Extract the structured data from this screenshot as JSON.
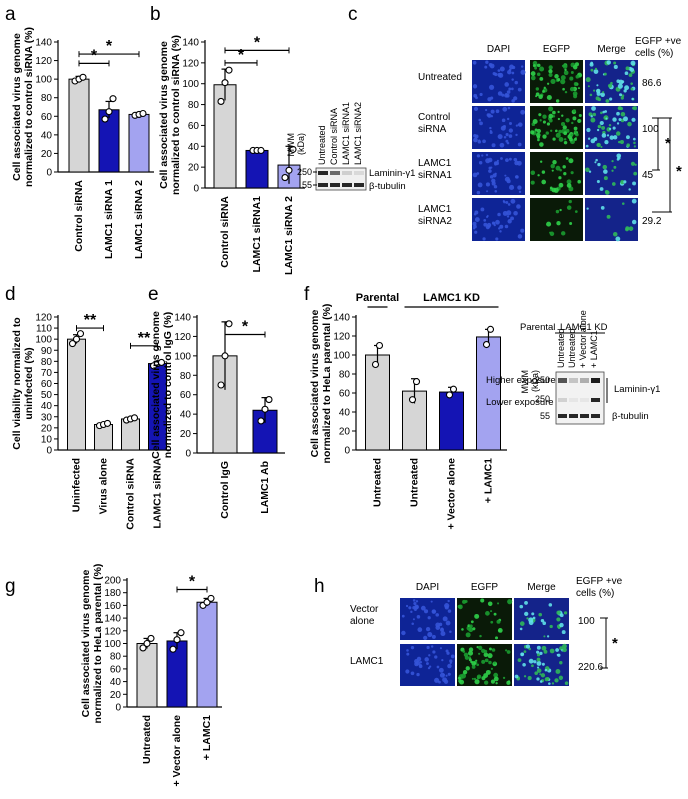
{
  "colors": {
    "gray": "#d6d6d6",
    "dark_blue": "#1414b4",
    "mid_blue": "#2f2fc8",
    "light_purple": "#a3a3f0",
    "micro_bg": "#102a8a",
    "egfp": "#1fb83a",
    "merge": "#2f5fc8"
  },
  "panel_letters": [
    "a",
    "b",
    "c",
    "d",
    "e",
    "f",
    "g",
    "h"
  ],
  "charts": [
    {
      "panel": "a",
      "type": "bar",
      "ylabel": [
        "Cell associated virus genome",
        "normalized to control siRNA (%)"
      ],
      "yticks": [
        0,
        20,
        40,
        60,
        80,
        100,
        120,
        140
      ],
      "ylim": [
        0,
        140
      ],
      "categories": [
        "Control siRNA",
        "LAMC1 siRNA 1",
        "LAMC1 siRNA 2"
      ],
      "values": [
        100,
        67,
        62
      ],
      "errors": [
        3,
        9,
        2
      ],
      "points": [
        [
          98,
          100,
          102
        ],
        [
          57,
          65,
          79
        ],
        [
          61,
          62,
          63
        ]
      ],
      "colors": [
        "#d6d6d6",
        "#1414b4",
        "#a3a3f0"
      ],
      "sig": [
        {
          "from": 0,
          "to": 1,
          "y": 117,
          "label": "*"
        },
        {
          "from": 0,
          "to": 2,
          "y": 127,
          "label": "*"
        }
      ]
    },
    {
      "panel": "b",
      "type": "bar",
      "ylabel": [
        "Cell associated virus genome",
        "normalized to control siRNA (%)"
      ],
      "yticks": [
        0,
        20,
        40,
        60,
        80,
        100,
        120,
        140
      ],
      "ylim": [
        0,
        140
      ],
      "categories": [
        "Control siRNA",
        "LAMC1 siRNA1",
        "LAMC1 siRNA 2"
      ],
      "values": [
        99,
        36,
        22
      ],
      "errors": [
        15,
        1,
        18
      ],
      "points": [
        [
          83,
          101,
          113
        ],
        [
          36,
          36,
          36
        ],
        [
          10,
          17,
          37
        ]
      ],
      "colors": [
        "#d6d6d6",
        "#1414b4",
        "#a3a3f0"
      ],
      "sig": [
        {
          "from": 0,
          "to": 1,
          "y": 120,
          "label": "*"
        },
        {
          "from": 0,
          "to": 2,
          "y": 132,
          "label": "*"
        }
      ]
    },
    {
      "panel": "d",
      "type": "bar",
      "ylabel": [
        "Cell viability normalized to",
        "uninfected (%)"
      ],
      "yticks": [
        0,
        10,
        20,
        30,
        40,
        50,
        60,
        70,
        80,
        90,
        100,
        110,
        120
      ],
      "ylim": [
        0,
        120
      ],
      "categories": [
        "Uninfected",
        "Virus alone",
        "Control siRNA",
        "LAMC1 siRNA"
      ],
      "values": [
        100,
        23,
        28,
        78
      ],
      "errors": [
        4,
        1,
        1,
        2
      ],
      "points": [
        [
          96,
          100,
          105
        ],
        [
          22,
          23,
          24
        ],
        [
          27,
          28,
          29
        ],
        [
          76,
          78,
          79
        ]
      ],
      "colors": [
        "#d6d6d6",
        "#d6d6d6",
        "#d6d6d6",
        "#1414b4"
      ],
      "sig": [
        {
          "from": 0,
          "to": 1,
          "y": 110,
          "label": "**"
        },
        {
          "from": 2,
          "to": 3,
          "y": 94,
          "label": "**"
        }
      ]
    },
    {
      "panel": "e",
      "type": "bar",
      "ylabel": [
        "Cell associated virus genome",
        "normalized to control IgG (%)"
      ],
      "yticks": [
        0,
        20,
        40,
        60,
        80,
        100,
        120,
        140
      ],
      "ylim": [
        0,
        140
      ],
      "categories": [
        "Control IgG",
        "LAMC1 Ab"
      ],
      "values": [
        100,
        44
      ],
      "errors": [
        35,
        13
      ],
      "points": [
        [
          70,
          100,
          133
        ],
        [
          33,
          45,
          55
        ]
      ],
      "colors": [
        "#d6d6d6",
        "#1414b4"
      ],
      "sig": [
        {
          "from": 0,
          "to": 1,
          "y": 122,
          "label": "*"
        }
      ]
    },
    {
      "panel": "f",
      "type": "bar",
      "ylabel": [
        "Cell associated virus genome",
        "normalized to HeLa parental (%)"
      ],
      "yticks": [
        0,
        20,
        40,
        60,
        80,
        100,
        120,
        140
      ],
      "ylim": [
        0,
        140
      ],
      "categories": [
        "Untreated",
        "Untreated",
        "+ Vector alone",
        "+ LAMC1"
      ],
      "values": [
        100,
        62,
        61,
        119
      ],
      "errors": [
        10,
        13,
        5,
        8
      ],
      "points": [
        [
          90,
          110
        ],
        [
          53,
          72
        ],
        [
          58,
          64
        ],
        [
          111,
          127
        ]
      ],
      "colors": [
        "#d6d6d6",
        "#d6d6d6",
        "#1414b4",
        "#a3a3f0"
      ],
      "sig": [],
      "groups": [
        {
          "label": "Parental",
          "from": 0,
          "to": 0
        },
        {
          "label": "LAMC1 KD",
          "from": 1,
          "to": 3
        }
      ]
    },
    {
      "panel": "g",
      "type": "bar",
      "ylabel": [
        "Cell associated virus genome",
        "normalized to HeLa parental (%)"
      ],
      "yticks": [
        0,
        20,
        40,
        60,
        80,
        100,
        120,
        140,
        160,
        180,
        200
      ],
      "ylim": [
        0,
        200
      ],
      "categories": [
        "Untreated",
        "+ Vector alone",
        "+ LAMC1"
      ],
      "values": [
        100,
        104,
        165
      ],
      "errors": [
        8,
        13,
        6
      ],
      "points": [
        [
          93,
          100,
          108
        ],
        [
          91,
          106,
          117
        ],
        [
          160,
          165,
          171
        ]
      ],
      "colors": [
        "#d6d6d6",
        "#1414b4",
        "#a3a3f0"
      ],
      "sig": [
        {
          "from": 1,
          "to": 2,
          "y": 185,
          "label": "*"
        }
      ]
    }
  ],
  "blot_b": {
    "mwm_label": [
      "MWM",
      "(kDa)"
    ],
    "lanes": [
      "Untreated",
      "Control siRNA",
      "LAMC1 siRNA1",
      "LAMC1 siRNA2"
    ],
    "markers": [
      "250",
      "55"
    ],
    "bands": [
      "Laminin-γ1",
      "β-tubulin"
    ]
  },
  "blot_f": {
    "groups": [
      "Parental",
      "LAMC1 KD"
    ],
    "mwm_label": [
      "MWM",
      "(kDa)"
    ],
    "lanes": [
      "Untreated",
      "Untreated",
      "+ Vector alone",
      "+ LAMC1"
    ],
    "exposures": [
      "Higher exposure",
      "Lower exposure"
    ],
    "markers": [
      "250",
      "250",
      "55"
    ],
    "bands": [
      "Laminin-γ1",
      "β-tubulin"
    ]
  },
  "micro_c": {
    "columns": [
      "DAPI",
      "EGFP",
      "Merge"
    ],
    "pct_header": [
      "EGFP +ve",
      "cells (%)"
    ],
    "rows": [
      {
        "label": [
          "Untreated"
        ],
        "value": "86.6"
      },
      {
        "label": [
          "Control",
          "siRNA"
        ],
        "value": "100"
      },
      {
        "label": [
          "LAMC1",
          "siRNA1"
        ],
        "value": "45"
      },
      {
        "label": [
          "LAMC1",
          "siRNA2"
        ],
        "value": "29.2"
      }
    ],
    "green_intensity": [
      0.85,
      0.95,
      0.45,
      0.18
    ],
    "sig": [
      "*",
      "*"
    ]
  },
  "micro_h": {
    "columns": [
      "DAPI",
      "EGFP",
      "Merge"
    ],
    "pct_header": [
      "EGFP +ve",
      "cells (%)"
    ],
    "rows": [
      {
        "label": [
          "Vector",
          "alone"
        ],
        "value": "100"
      },
      {
        "label": [
          "LAMC1"
        ],
        "value": "220.6"
      }
    ],
    "green_intensity": [
      0.45,
      0.9
    ],
    "sig": [
      "*"
    ]
  }
}
